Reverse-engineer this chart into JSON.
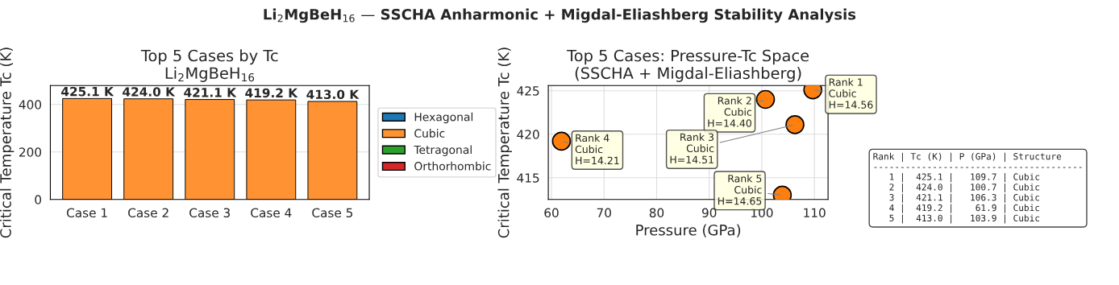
{
  "chart_data": [
    {
      "type": "bar",
      "title": "Top 5 Cases by Tc\nLi$_{2}$MgBeH$_{16}$",
      "ylabel": "Critical Temperature Tc (K)",
      "categories": [
        "Case 1",
        "Case 2",
        "Case 3",
        "Case 4",
        "Case 5"
      ],
      "series": [
        {
          "name": "Hexagonal",
          "color": "#1f77b4",
          "values": [
            null,
            null,
            null,
            null,
            null
          ]
        },
        {
          "name": "Cubic",
          "color": "#ff9333",
          "values": [
            425.1,
            424.0,
            421.1,
            419.2,
            413.0
          ],
          "value_labels": [
            "425.1 K",
            "424.0 K",
            "421.1 K",
            "419.2 K",
            "413.0 K"
          ]
        },
        {
          "name": "Tetragonal",
          "color": "#2ca02c",
          "values": [
            null,
            null,
            null,
            null,
            null
          ]
        },
        {
          "name": "Orthorhombic",
          "color": "#d62728",
          "values": [
            null,
            null,
            null,
            null,
            null
          ]
        }
      ],
      "ylim": [
        0,
        480
      ],
      "yticks": [
        0,
        200,
        400
      ],
      "grid": "y",
      "legend": "right",
      "annotations": [
        "Li$_{2}$MgBeH$_{16}$ — SSCHA Anharmonic + Migdal-Eliashberg Stability Analysis"
      ]
    },
    {
      "type": "scatter",
      "title": "Top 5 Cases: Pressure-Tc Space\n(SSCHA + Migdal-Eliashberg)",
      "xlabel": "Pressure (GPa)",
      "ylabel": "Critical Temperature Tc (K)",
      "x": [
        109.7,
        100.7,
        106.3,
        61.9,
        103.9
      ],
      "series": [
        {
          "color": "#ff7f0e",
          "values": [
            425.1,
            424.0,
            421.1,
            419.2,
            413.0
          ]
        }
      ],
      "xlim": [
        59.4,
        112.6
      ],
      "ylim": [
        412.5,
        425.6
      ],
      "xticks": [
        60,
        70,
        80,
        90,
        100,
        110
      ],
      "yticks": [
        415,
        420,
        425
      ],
      "grid": true,
      "marker": "circle",
      "annotations": [
        {
          "text": "Rank 1\nCubic\nH=14.56",
          "x": 109.7,
          "y": 425.1
        },
        {
          "text": "Rank 2\nCubic\nH=14.40",
          "x": 100.7,
          "y": 424.0
        },
        {
          "text": "Rank 3\nCubic\nH=14.51",
          "x": 106.3,
          "y": 421.1
        },
        {
          "text": "Rank 4\nCubic\nH=14.21",
          "x": 61.9,
          "y": 419.2
        },
        {
          "text": "Rank 5\nCubic\nH=14.65",
          "x": 103.9,
          "y": 413.0
        },
        "Rank | Tc (K) | P (GPa) | Structure\n---------------------------------------\n   1 |  425.1 |   109.7 | Cubic\n   2 |  424.0 |   100.7 | Cubic\n   3 |  421.1 |   106.3 | Cubic\n   4 |  419.2 |    61.9 | Cubic\n   5 |  413.0 |   103.9 | Cubic"
      ]
    }
  ]
}
